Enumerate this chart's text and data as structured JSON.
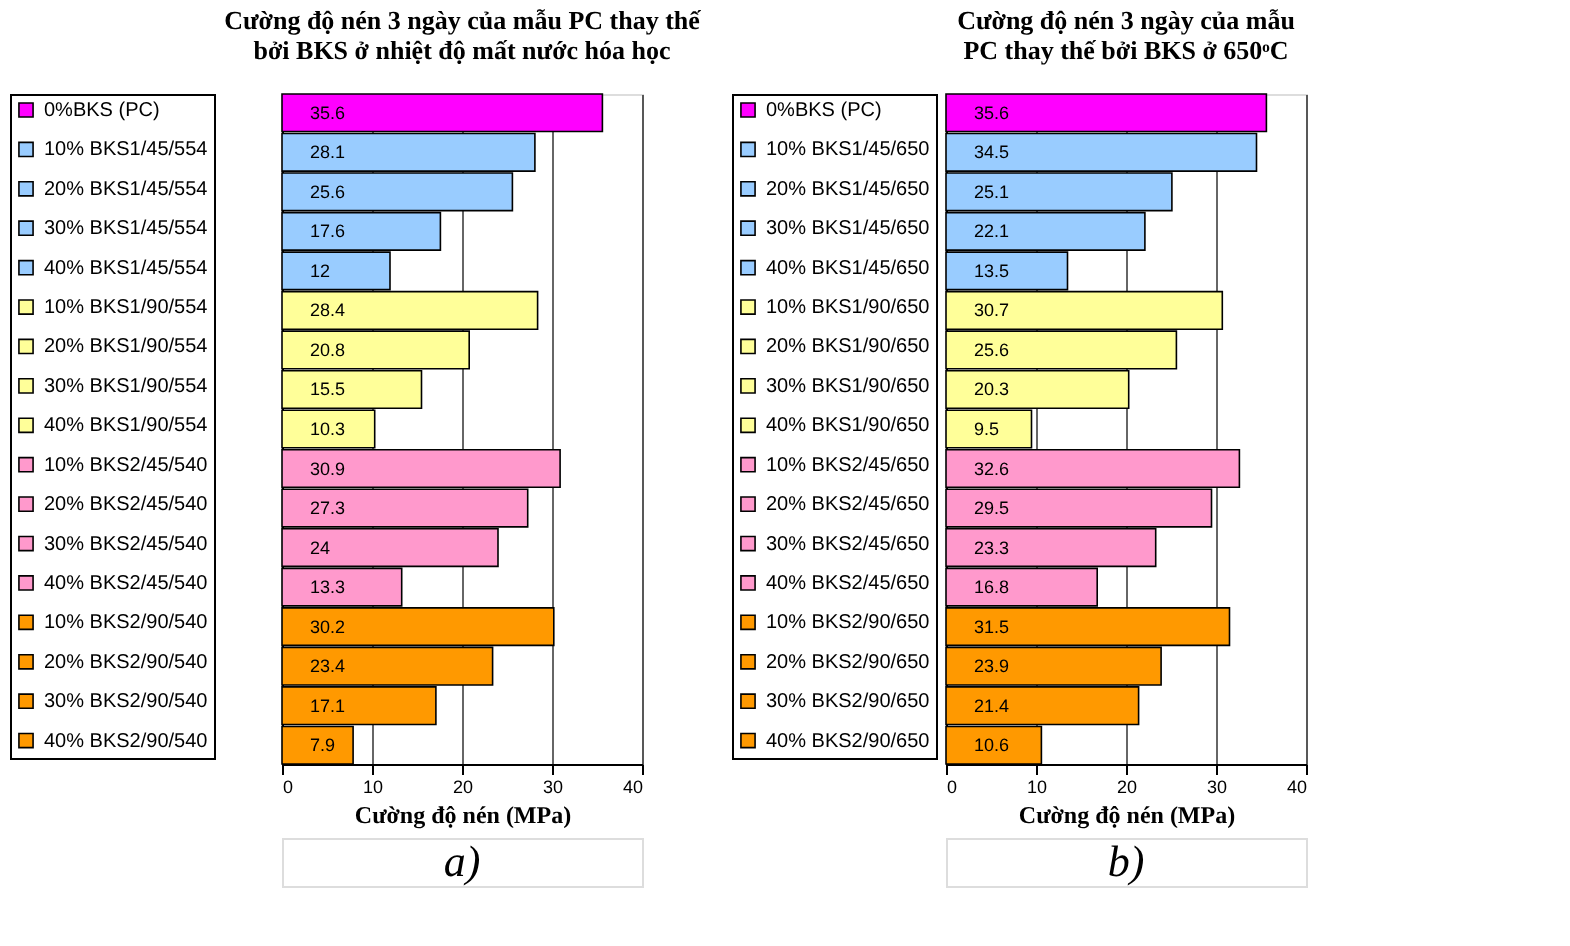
{
  "chart_data": [
    {
      "type": "bar",
      "orientation": "horizontal",
      "title": "Cường độ nén 3 ngày của mẫu PC thay thế\nbởi BKS ở nhiệt độ mất nước hóa học",
      "xlabel": "Cường độ nén (MPa)",
      "categories": [
        null
      ],
      "series": [
        {
          "name": "0%BKS (PC)",
          "color": "#ff00ff",
          "values": [
            35.6
          ]
        },
        {
          "name": "10% BKS1/45/554",
          "color": "#99ccff",
          "values": [
            28.1
          ]
        },
        {
          "name": "20% BKS1/45/554",
          "color": "#99ccff",
          "values": [
            25.6
          ]
        },
        {
          "name": "30% BKS1/45/554",
          "color": "#99ccff",
          "values": [
            17.6
          ]
        },
        {
          "name": "40% BKS1/45/554",
          "color": "#99ccff",
          "values": [
            12
          ]
        },
        {
          "name": "10% BKS1/90/554",
          "color": "#ffff99",
          "values": [
            28.4
          ]
        },
        {
          "name": "20% BKS1/90/554",
          "color": "#ffff99",
          "values": [
            20.8
          ]
        },
        {
          "name": "30% BKS1/90/554",
          "color": "#ffff99",
          "values": [
            15.5
          ]
        },
        {
          "name": "40% BKS1/90/554",
          "color": "#ffff99",
          "values": [
            10.3
          ]
        },
        {
          "name": "10% BKS2/45/540",
          "color": "#ff99cc",
          "values": [
            30.9
          ]
        },
        {
          "name": "20% BKS2/45/540",
          "color": "#ff99cc",
          "values": [
            27.3
          ]
        },
        {
          "name": "30% BKS2/45/540",
          "color": "#ff99cc",
          "values": [
            24
          ]
        },
        {
          "name": "40% BKS2/45/540",
          "color": "#ff99cc",
          "values": [
            13.3
          ]
        },
        {
          "name": "10% BKS2/90/540",
          "color": "#ff9900",
          "values": [
            30.2
          ]
        },
        {
          "name": "20% BKS2/90/540",
          "color": "#ff9900",
          "values": [
            23.4
          ]
        },
        {
          "name": "30% BKS2/90/540",
          "color": "#ff9900",
          "values": [
            17.1
          ]
        },
        {
          "name": "40% BKS2/90/540",
          "color": "#ff9900",
          "values": [
            7.9
          ]
        }
      ],
      "xlim": [
        0,
        40
      ],
      "xticks": [
        0,
        10,
        20,
        30,
        40
      ],
      "grid": "x",
      "legend": "left",
      "tick_labels": "x",
      "data_labels": true,
      "annotations": [
        "a)"
      ]
    },
    {
      "type": "bar",
      "orientation": "horizontal",
      "title": "Cường độ nén 3 ngày của mẫu\nPC thay thế bởi BKS ở 650ᵒC",
      "xlabel": "Cường độ nén (MPa)",
      "categories": [
        null
      ],
      "series": [
        {
          "name": "0%BKS (PC)",
          "color": "#ff00ff",
          "values": [
            35.6
          ]
        },
        {
          "name": "10% BKS1/45/650",
          "color": "#99ccff",
          "values": [
            34.5
          ]
        },
        {
          "name": "20% BKS1/45/650",
          "color": "#99ccff",
          "values": [
            25.1
          ]
        },
        {
          "name": "30% BKS1/45/650",
          "color": "#99ccff",
          "values": [
            22.1
          ]
        },
        {
          "name": "40% BKS1/45/650",
          "color": "#99ccff",
          "values": [
            13.5
          ]
        },
        {
          "name": "10% BKS1/90/650",
          "color": "#ffff99",
          "values": [
            30.7
          ]
        },
        {
          "name": "20% BKS1/90/650",
          "color": "#ffff99",
          "values": [
            25.6
          ]
        },
        {
          "name": "30% BKS1/90/650",
          "color": "#ffff99",
          "values": [
            20.3
          ]
        },
        {
          "name": "40% BKS1/90/650",
          "color": "#ffff99",
          "values": [
            9.5
          ]
        },
        {
          "name": "10% BKS2/45/650",
          "color": "#ff99cc",
          "values": [
            32.6
          ]
        },
        {
          "name": "20% BKS2/45/650",
          "color": "#ff99cc",
          "values": [
            29.5
          ]
        },
        {
          "name": "30% BKS2/45/650",
          "color": "#ff99cc",
          "values": [
            23.3
          ]
        },
        {
          "name": "40% BKS2/45/650",
          "color": "#ff99cc",
          "values": [
            16.8
          ]
        },
        {
          "name": "10% BKS2/90/650",
          "color": "#ff9900",
          "values": [
            31.5
          ]
        },
        {
          "name": "20% BKS2/90/650",
          "color": "#ff9900",
          "values": [
            23.9
          ]
        },
        {
          "name": "30% BKS2/90/650",
          "color": "#ff9900",
          "values": [
            21.4
          ]
        },
        {
          "name": "40% BKS2/90/650",
          "color": "#ff9900",
          "values": [
            10.6
          ]
        }
      ],
      "xlim": [
        0,
        40
      ],
      "xticks": [
        0,
        10,
        20,
        30,
        40
      ],
      "grid": "x",
      "legend": "left",
      "tick_labels": "x",
      "data_labels": true,
      "annotations": [
        "b)"
      ]
    }
  ]
}
